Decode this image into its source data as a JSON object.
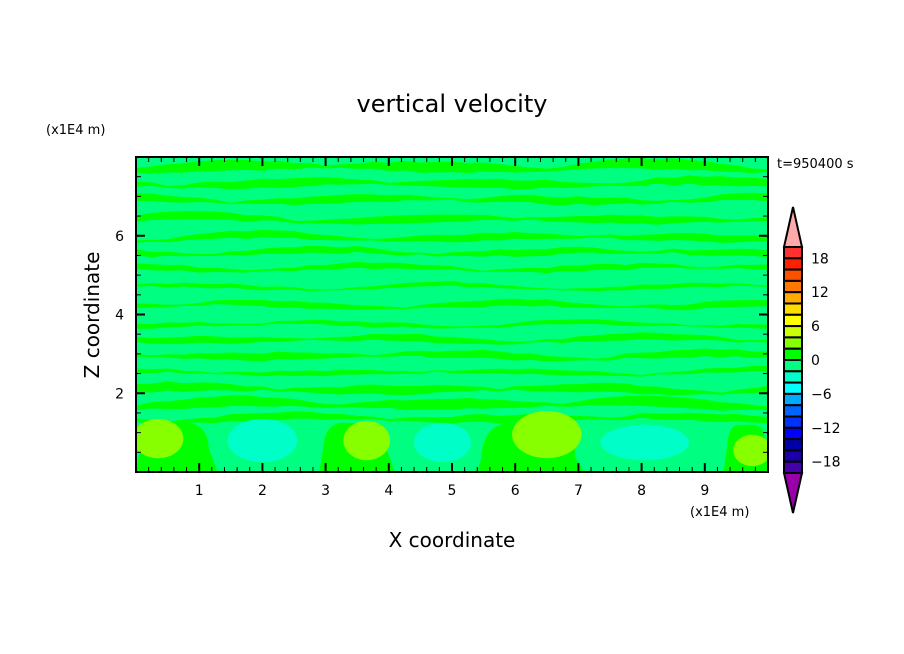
{
  "chart_data": {
    "type": "heatmap",
    "subtype": "filled-contour",
    "title": "vertical velocity",
    "xlabel": "X coordinate",
    "ylabel": "Z coordinate",
    "x_unit": "(x1E4 m)",
    "y_unit": "(x1E4 m)",
    "time_label": "t=950400 s",
    "xlim": [
      0,
      10
    ],
    "ylim": [
      0,
      8
    ],
    "x_ticks": [
      1,
      2,
      3,
      4,
      5,
      6,
      7,
      8,
      9
    ],
    "y_ticks": [
      2,
      4,
      6
    ],
    "grid": false,
    "colorbar": {
      "levels": [
        -20,
        -18,
        -16,
        -14,
        -12,
        -10,
        -8,
        -6,
        -4,
        -2,
        0,
        2,
        4,
        6,
        8,
        10,
        12,
        14,
        16,
        18,
        20
      ],
      "tick_labels": [
        "18",
        "12",
        "6",
        "0",
        "-6",
        "-12",
        "-18"
      ],
      "tick_values": [
        18,
        12,
        6,
        0,
        -6,
        -12,
        -18
      ],
      "colors_top_to_bottom": [
        "#ff3030",
        "#ff2000",
        "#ff5000",
        "#ff7800",
        "#ffaa00",
        "#ffdc00",
        "#ffff00",
        "#ccff00",
        "#88ff00",
        "#00ff00",
        "#00ff80",
        "#00ffc8",
        "#00ffff",
        "#00aaff",
        "#0064ff",
        "#0032ff",
        "#0000ff",
        "#0000aa",
        "#1a00aa",
        "#4400aa"
      ],
      "over_color": "#ffaaaa",
      "under_color": "#9900aa",
      "extend": "both"
    },
    "background_level_range": [
      -2,
      0
    ],
    "features": [
      {
        "kind": "updraft",
        "range": [
          0,
          2
        ],
        "x": [
          0,
          1.2
        ],
        "z": [
          0,
          1.25
        ]
      },
      {
        "kind": "updraft",
        "range": [
          0,
          2
        ],
        "x": [
          2.9,
          4.0
        ],
        "z": [
          0,
          1.25
        ]
      },
      {
        "kind": "updraft",
        "range": [
          0,
          2
        ],
        "x": [
          5.4,
          7.0
        ],
        "z": [
          0,
          1.25
        ]
      },
      {
        "kind": "updraft",
        "range": [
          0,
          2
        ],
        "x": [
          9.3,
          10
        ],
        "z": [
          0,
          1.2
        ]
      },
      {
        "kind": "core",
        "range": [
          2,
          4
        ],
        "x": 0.35,
        "z": 0.85,
        "rx": 0.4,
        "rz": 0.5
      },
      {
        "kind": "core",
        "range": [
          2,
          4
        ],
        "x": 3.65,
        "z": 0.8,
        "rx": 0.37,
        "rz": 0.5
      },
      {
        "kind": "core",
        "range": [
          2,
          4
        ],
        "x": 6.5,
        "z": 0.95,
        "rx": 0.55,
        "rz": 0.6
      },
      {
        "kind": "core",
        "range": [
          2,
          4
        ],
        "x": 9.75,
        "z": 0.55,
        "rx": 0.3,
        "rz": 0.4
      },
      {
        "kind": "downdraft",
        "range": [
          -4,
          -2
        ],
        "x": 2.0,
        "z": 0.8,
        "rx": 0.55,
        "rz": 0.55
      },
      {
        "kind": "downdraft",
        "range": [
          -4,
          -2
        ],
        "x": 4.85,
        "z": 0.75,
        "rx": 0.45,
        "rz": 0.5
      },
      {
        "kind": "downdraft",
        "range": [
          -4,
          -2
        ],
        "x": 8.05,
        "z": 0.75,
        "rx": 0.7,
        "rz": 0.45
      }
    ]
  }
}
